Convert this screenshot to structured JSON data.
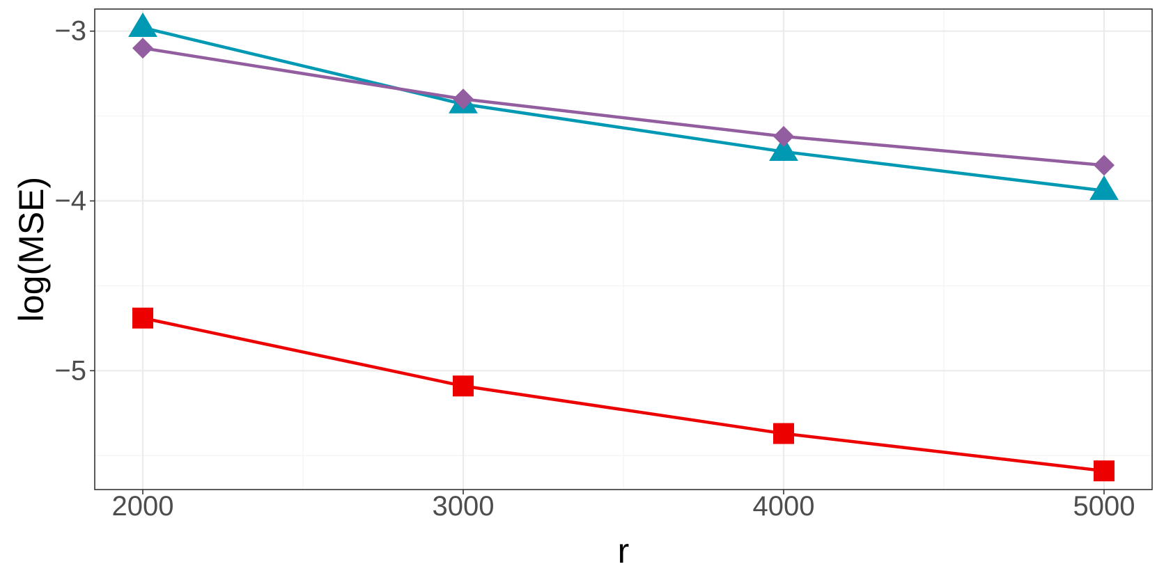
{
  "chart_data": {
    "type": "line",
    "title": "",
    "xlabel": "r",
    "ylabel": "log(MSE)",
    "x": [
      2000,
      3000,
      4000,
      5000
    ],
    "x_ticks": [
      2000,
      3000,
      4000,
      5000
    ],
    "x_tick_labels": [
      "2000",
      "3000",
      "4000",
      "5000"
    ],
    "y_ticks": [
      -5,
      -4,
      -3
    ],
    "y_tick_labels": [
      "−5",
      "−4",
      "−3"
    ],
    "xlim": [
      1850,
      5150
    ],
    "ylim": [
      -5.7,
      -2.87
    ],
    "grid": true,
    "legend": "none",
    "series": [
      {
        "marker": "triangle",
        "color": "#0099B4",
        "values": [
          -2.98,
          -3.43,
          -3.71,
          -3.94
        ]
      },
      {
        "marker": "diamond",
        "color": "#925E9F",
        "values": [
          -3.1,
          -3.4,
          -3.62,
          -3.79
        ]
      },
      {
        "marker": "square",
        "color": "#ED0000",
        "values": [
          -4.69,
          -5.09,
          -5.37,
          -5.59
        ]
      }
    ]
  }
}
